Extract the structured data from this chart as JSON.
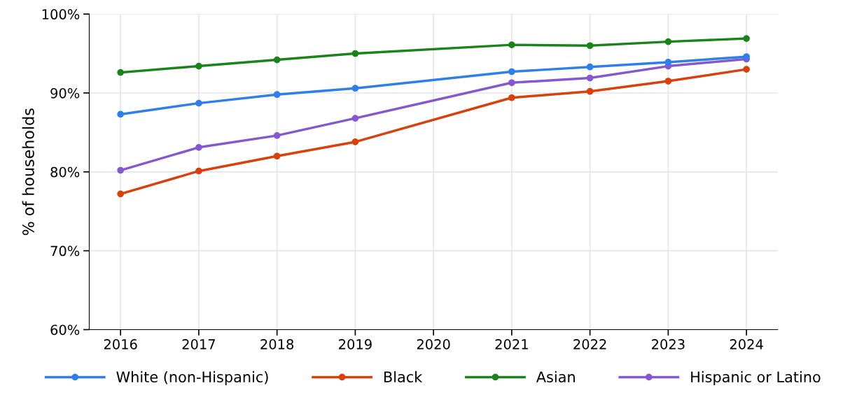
{
  "chart_data": {
    "type": "line",
    "ylabel": "% of households",
    "x": [
      2016,
      2017,
      2018,
      2019,
      2021,
      2022,
      2023,
      2024
    ],
    "series": [
      {
        "name": "White (non-Hispanic)",
        "color": "#2f7fea",
        "values": [
          87.3,
          88.7,
          89.8,
          90.6,
          92.7,
          93.3,
          93.9,
          94.6
        ]
      },
      {
        "name": "Black",
        "color": "#d9400b",
        "values": [
          77.2,
          80.1,
          82.0,
          83.8,
          89.4,
          90.2,
          91.5,
          93.0
        ]
      },
      {
        "name": "Asian",
        "color": "#1a841a",
        "values": [
          92.6,
          93.4,
          94.2,
          95.0,
          96.1,
          96.0,
          96.5,
          96.9
        ]
      },
      {
        "name": "Hispanic or Latino",
        "color": "#8558cf",
        "values": [
          80.2,
          83.1,
          84.6,
          86.8,
          91.3,
          91.9,
          93.4,
          94.3
        ]
      }
    ],
    "xlim": [
      2015.6,
      2024.4
    ],
    "xticks": [
      2016,
      2017,
      2018,
      2019,
      2020,
      2021,
      2022,
      2023,
      2024
    ],
    "ylim": [
      60,
      100
    ],
    "yticks": [
      {
        "value": 60,
        "label": "60%"
      },
      {
        "value": 70,
        "label": "70%"
      },
      {
        "value": 80,
        "label": "80%"
      },
      {
        "value": 90,
        "label": "90%"
      },
      {
        "value": 100,
        "label": "100%"
      }
    ],
    "grid": true,
    "legend": "bottom",
    "marker": "circle",
    "line_style": "solid"
  }
}
